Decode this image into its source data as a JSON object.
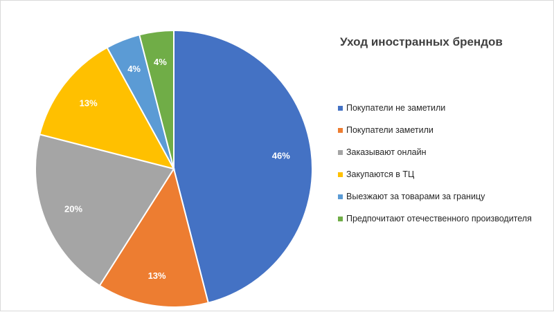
{
  "chart_data": {
    "type": "pie",
    "title": "Уход иностранных брендов",
    "legend_position": "right",
    "slices": [
      {
        "label": "Покупатели не заметили",
        "value": 46,
        "display": "46%",
        "color": "#4472C4"
      },
      {
        "label": "Покупатели заметили",
        "value": 13,
        "display": "13%",
        "color": "#ED7D31"
      },
      {
        "label": "Заказывают онлайн",
        "value": 20,
        "display": "20%",
        "color": "#A5A5A5"
      },
      {
        "label": "Закупаются в ТЦ",
        "value": 13,
        "display": "13%",
        "color": "#FFC000"
      },
      {
        "label": "Выезжают за товарами за границу",
        "value": 4,
        "display": "4%",
        "color": "#5B9BD5"
      },
      {
        "label": "Предпочитают отечественного производителя",
        "value": 4,
        "display": "4%",
        "color": "#70AD47"
      }
    ]
  }
}
